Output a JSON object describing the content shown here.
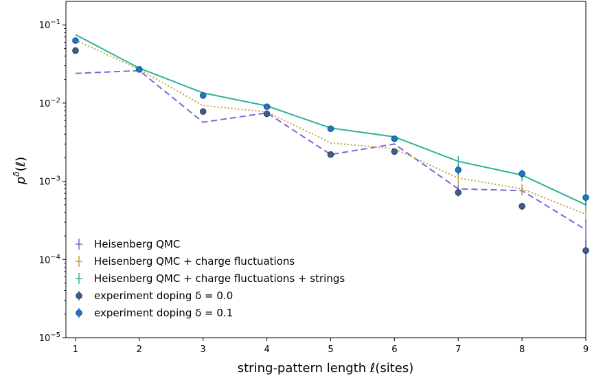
{
  "chart_data": {
    "type": "line",
    "xlabel": "string-pattern length ℓ(sites)",
    "ylabel": "pδ(ℓ)",
    "ylabel_base": "p",
    "ylabel_sup": "δ",
    "ylabel_arg": "(ℓ)",
    "yscale": "log",
    "xlim": [
      0.85,
      9.0
    ],
    "ylim": [
      1e-05,
      0.2
    ],
    "x_ticks": [
      1,
      2,
      3,
      4,
      5,
      6,
      7,
      8,
      9
    ],
    "y_ticks": [
      {
        "value": 0.1,
        "base": "10",
        "exp": "−1"
      },
      {
        "value": 0.01,
        "base": "10",
        "exp": "−2"
      },
      {
        "value": 0.001,
        "base": "10",
        "exp": "−3"
      },
      {
        "value": 0.0001,
        "base": "10",
        "exp": "−4"
      },
      {
        "value": 1e-05,
        "base": "10",
        "exp": "−5"
      }
    ],
    "grid": false,
    "legend_position": "bottom-left",
    "x": [
      1,
      2,
      3,
      4,
      5,
      6,
      7,
      8,
      9
    ],
    "series": [
      {
        "name": "Heisenberg QMC",
        "style": "dashed",
        "color": "#7b68d6",
        "values": [
          0.024,
          0.026,
          0.0057,
          0.0075,
          0.0022,
          0.003,
          0.0008,
          0.00076,
          0.00024
        ],
        "errors": [
          0,
          0,
          0,
          0,
          0,
          0,
          0.0001,
          0.0001,
          6e-05
        ]
      },
      {
        "name": "Heisenberg QMC + charge fluctuations",
        "style": "dotted",
        "color": "#c9a13a",
        "values": [
          0.064,
          0.027,
          0.0093,
          0.0077,
          0.0031,
          0.0026,
          0.0011,
          0.0008,
          0.00038
        ],
        "errors": [
          0,
          0,
          0,
          0,
          0,
          0,
          0.0002,
          0.00012,
          6e-05
        ]
      },
      {
        "name": "Heisenberg QMC + charge fluctuations + strings",
        "style": "solid",
        "color": "#2ab39a",
        "values": [
          0.075,
          0.028,
          0.0135,
          0.0092,
          0.0048,
          0.0037,
          0.0018,
          0.0012,
          0.0005
        ],
        "errors": [
          0,
          0,
          0,
          0,
          0,
          0,
          0.0003,
          0.0002,
          8e-05
        ]
      },
      {
        "name": "experiment doping δ = 0.0",
        "style": "markers",
        "color": "#3f5f8a",
        "values": [
          0.047,
          0.027,
          0.0078,
          0.0073,
          0.0022,
          0.0024,
          0.00072,
          0.00048,
          0.00013
        ],
        "errors": [
          0,
          0,
          0,
          0,
          0,
          0,
          8e-05,
          5e-05,
          3e-05
        ]
      },
      {
        "name": "experiment doping δ = 0.1",
        "style": "markers",
        "color": "#1f77c4",
        "values": [
          0.063,
          0.027,
          0.0125,
          0.009,
          0.0047,
          0.0035,
          0.0014,
          0.00125,
          0.00062
        ],
        "errors": [
          0,
          0,
          0,
          0,
          0,
          0,
          0.0002,
          0.00015,
          0.00013
        ]
      }
    ]
  }
}
